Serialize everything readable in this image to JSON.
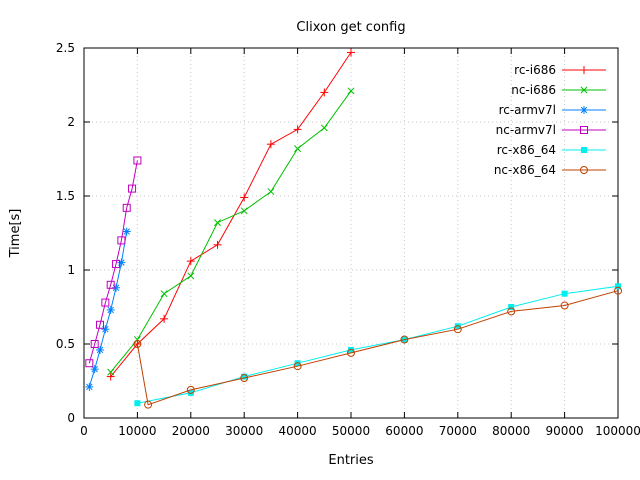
{
  "window": {
    "title": "Clixon get config"
  },
  "chart_data": {
    "type": "line",
    "title": "Clixon get config",
    "xlabel": "Entries",
    "ylabel": "Time[s]",
    "xlim": [
      0,
      100000
    ],
    "ylim": [
      0,
      2.5
    ],
    "xticks": [
      0,
      10000,
      20000,
      30000,
      40000,
      50000,
      60000,
      70000,
      80000,
      90000,
      100000
    ],
    "yticks": [
      0,
      0.5,
      1,
      1.5,
      2,
      2.5
    ],
    "grid": true,
    "legend_position": "top-right-inside",
    "series": [
      {
        "name": "rc-i686",
        "color": "#ff0000",
        "marker": "plus",
        "points": [
          [
            5000,
            0.28
          ],
          [
            10000,
            0.5
          ],
          [
            15000,
            0.67
          ],
          [
            20000,
            1.06
          ],
          [
            25000,
            1.17
          ],
          [
            30000,
            1.49
          ],
          [
            35000,
            1.85
          ],
          [
            40000,
            1.95
          ],
          [
            45000,
            2.2
          ],
          [
            50000,
            2.47
          ]
        ]
      },
      {
        "name": "nc-i686",
        "color": "#00c000",
        "marker": "x",
        "points": [
          [
            5000,
            0.31
          ],
          [
            10000,
            0.53
          ],
          [
            15000,
            0.84
          ],
          [
            20000,
            0.96
          ],
          [
            25000,
            1.32
          ],
          [
            30000,
            1.4
          ],
          [
            35000,
            1.53
          ],
          [
            40000,
            1.82
          ],
          [
            45000,
            1.96
          ],
          [
            50000,
            2.21
          ]
        ]
      },
      {
        "name": "rc-armv7l",
        "color": "#0080ff",
        "marker": "asterisk",
        "points": [
          [
            1000,
            0.21
          ],
          [
            2000,
            0.33
          ],
          [
            3000,
            0.46
          ],
          [
            4000,
            0.6
          ],
          [
            5000,
            0.73
          ],
          [
            6000,
            0.88
          ],
          [
            7000,
            1.05
          ],
          [
            8000,
            1.26
          ]
        ]
      },
      {
        "name": "nc-armv7l",
        "color": "#c000c0",
        "marker": "square-open",
        "points": [
          [
            1000,
            0.37
          ],
          [
            2000,
            0.5
          ],
          [
            3000,
            0.63
          ],
          [
            4000,
            0.78
          ],
          [
            5000,
            0.9
          ],
          [
            6000,
            1.04
          ],
          [
            7000,
            1.2
          ],
          [
            8000,
            1.42
          ],
          [
            9000,
            1.55
          ],
          [
            10000,
            1.74
          ]
        ]
      },
      {
        "name": "rc-x86_64",
        "color": "#00eeee",
        "marker": "square-filled",
        "points": [
          [
            10000,
            0.1
          ],
          [
            20000,
            0.17
          ],
          [
            30000,
            0.28
          ],
          [
            40000,
            0.37
          ],
          [
            50000,
            0.46
          ],
          [
            60000,
            0.53
          ],
          [
            70000,
            0.62
          ],
          [
            80000,
            0.75
          ],
          [
            90000,
            0.84
          ],
          [
            100000,
            0.89
          ]
        ]
      },
      {
        "name": "nc-x86_64",
        "color": "#c04000",
        "marker": "circle-open",
        "points": [
          [
            10000,
            0.5
          ],
          [
            12000,
            0.09
          ],
          [
            20000,
            0.19
          ],
          [
            30000,
            0.27
          ],
          [
            40000,
            0.35
          ],
          [
            50000,
            0.44
          ],
          [
            60000,
            0.53
          ],
          [
            70000,
            0.6
          ],
          [
            80000,
            0.72
          ],
          [
            90000,
            0.76
          ],
          [
            100000,
            0.86
          ]
        ]
      }
    ],
    "style": {
      "grid_color": "#c8c8c8",
      "border_color": "#000000",
      "text_color": "#000000"
    }
  }
}
